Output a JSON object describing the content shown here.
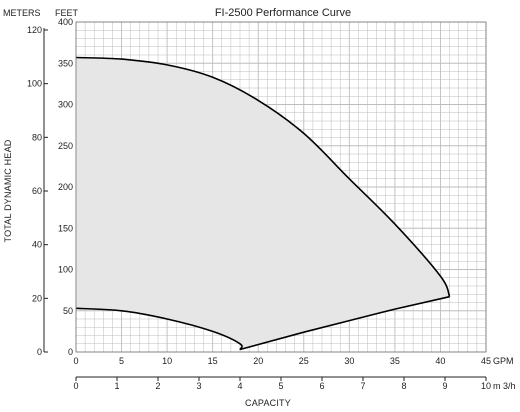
{
  "chart_data": {
    "type": "area",
    "title": "FI-2500 Performance Curve",
    "ylabel": "TOTAL DYNAMIC HEAD",
    "xlabel": "CAPACITY",
    "units": {
      "meters": "METERS",
      "feet": "FEET",
      "gpm": "GPM",
      "m3h": "m 3/h"
    },
    "x_gpm": {
      "min": 0,
      "max": 45,
      "ticks": [
        0,
        5,
        10,
        15,
        20,
        25,
        30,
        35,
        40,
        45
      ]
    },
    "x_m3h": {
      "min": 0,
      "max": 10,
      "ticks": [
        0,
        1,
        2,
        3,
        4,
        5,
        6,
        7,
        8,
        9,
        10
      ]
    },
    "y_feet": {
      "min": 0,
      "max": 400,
      "ticks": [
        0,
        50,
        100,
        150,
        200,
        250,
        300,
        350,
        400
      ]
    },
    "y_meters": {
      "min": 0,
      "max": 120,
      "ticks": [
        0,
        20,
        40,
        60,
        80,
        100,
        120
      ]
    },
    "grid": true,
    "series": [
      {
        "values_gpm_feet": [
          [
            0,
            357
          ],
          [
            5,
            355
          ],
          [
            10,
            348
          ],
          [
            15,
            333
          ],
          [
            20,
            305
          ],
          [
            25,
            265
          ],
          [
            30,
            210
          ],
          [
            35,
            155
          ],
          [
            40,
            92
          ],
          [
            41,
            67
          ]
        ]
      },
      {
        "values_gpm_feet": [
          [
            0,
            53
          ],
          [
            5,
            50
          ],
          [
            10,
            40
          ],
          [
            15,
            25
          ],
          [
            18,
            10
          ],
          [
            18,
            3
          ]
        ]
      },
      {
        "values_gpm_feet": [
          [
            18,
            3
          ],
          [
            25,
            24
          ],
          [
            30,
            38
          ],
          [
            35,
            52
          ],
          [
            41,
            67
          ]
        ]
      }
    ],
    "fill_color": "#e6e6e6",
    "line_color": "#000000",
    "grid_color": "#bdbdbd"
  }
}
